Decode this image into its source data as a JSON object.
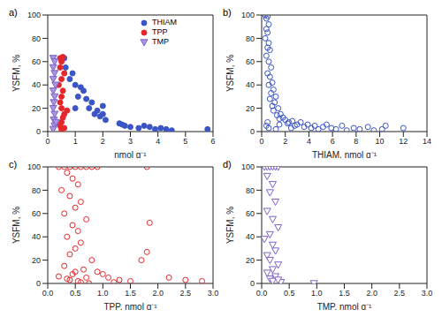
{
  "chart_data": [
    {
      "type": "scatter",
      "title": "a)",
      "x_label": "nmol g⁻¹",
      "y_label": "YSFM, %",
      "xlim": [
        0,
        6
      ],
      "xticks": [
        0,
        1,
        2,
        3,
        4,
        5,
        6
      ],
      "ylim": [
        0,
        100
      ],
      "yticks": [
        0,
        20,
        40,
        60,
        80,
        100
      ],
      "grid": false,
      "legend": "upper right",
      "series": [
        {
          "name": "THIAM",
          "color": "#3b55c6",
          "marker": "circle",
          "x": [
            0.6,
            0.65,
            0.9,
            1.0,
            1.1,
            1.2,
            1.3,
            1.4,
            1.5,
            1.6,
            1.7,
            1.8,
            1.9,
            2.0,
            2.1,
            2.0,
            2.7,
            2.8,
            3.0,
            3.3,
            3.5,
            3.7,
            3.9,
            4.1,
            4.3,
            4.5,
            5.8,
            2.6,
            1.0,
            0.8
          ],
          "values": [
            63,
            55,
            50,
            40,
            30,
            38,
            35,
            28,
            20,
            25,
            15,
            18,
            13,
            22,
            10,
            15,
            6,
            5,
            4,
            3,
            5,
            4,
            2,
            3,
            2,
            1,
            2,
            7,
            20,
            45
          ]
        },
        {
          "name": "TPP",
          "color": "#e5262a",
          "marker": "circle",
          "x": [
            0.45,
            0.5,
            0.55,
            0.45,
            0.5,
            0.55,
            0.5,
            0.45,
            0.5,
            0.6,
            0.55,
            0.5,
            0.45,
            0.6,
            0.4,
            0.6,
            0.7,
            0.5
          ],
          "values": [
            63,
            60,
            64,
            55,
            45,
            35,
            30,
            25,
            20,
            15,
            12,
            8,
            5,
            3,
            40,
            50,
            18,
            2
          ]
        },
        {
          "name": "TMP",
          "color": "#7f62c9",
          "marker": "triangle",
          "x": [
            0.2,
            0.25,
            0.2,
            0.25,
            0.2,
            0.28,
            0.2,
            0.25,
            0.22,
            0.2,
            0.25,
            0.22,
            0.25,
            0.2,
            0.3
          ],
          "values": [
            63,
            60,
            55,
            50,
            45,
            40,
            35,
            30,
            25,
            20,
            15,
            10,
            5,
            2,
            8
          ]
        }
      ]
    },
    {
      "type": "scatter",
      "title": "b)",
      "x_label": "THIAM, nmol g⁻¹",
      "y_label": "YSFM, %",
      "xlim": [
        0,
        14
      ],
      "xticks": [
        0,
        2,
        4,
        6,
        8,
        10,
        12,
        14
      ],
      "ylim": [
        0,
        100
      ],
      "yticks": [
        0,
        20,
        40,
        60,
        80,
        100
      ],
      "grid": false,
      "series": [
        {
          "color": "#3b55c6",
          "marker": "open-circle",
          "x": [
            0.3,
            0.4,
            0.5,
            0.6,
            0.4,
            0.5,
            0.3,
            0.6,
            0.7,
            0.5,
            0.4,
            0.6,
            0.8,
            0.5,
            0.7,
            0.9,
            0.6,
            1.0,
            0.8,
            1.2,
            0.7,
            1.1,
            0.9,
            1.4,
            1.0,
            1.6,
            1.3,
            1.8,
            2.0,
            1.5,
            2.3,
            2.6,
            2.2,
            3.0,
            2.8,
            3.3,
            3.6,
            3.9,
            4.2,
            4.5,
            4.8,
            5.2,
            5.5,
            5.9,
            6.3,
            6.8,
            7.2,
            7.8,
            8.3,
            9.0,
            9.5,
            10.2,
            10.5,
            12.0,
            0.5,
            0.6,
            0.4,
            1.2,
            1.5,
            2.5
          ],
          "values": [
            100,
            97,
            99,
            92,
            88,
            85,
            80,
            76,
            70,
            72,
            65,
            60,
            55,
            50,
            47,
            42,
            40,
            36,
            33,
            30,
            28,
            25,
            22,
            20,
            18,
            15,
            14,
            12,
            10,
            11,
            8,
            9,
            7,
            6,
            5,
            8,
            4,
            6,
            3,
            5,
            2,
            4,
            6,
            3,
            2,
            5,
            1,
            3,
            2,
            4,
            1,
            2,
            5,
            3,
            8,
            3,
            5,
            2,
            6,
            3
          ]
        }
      ]
    },
    {
      "type": "scatter",
      "title": "c)",
      "x_label": "TPP, nmol g⁻¹",
      "y_label": "YSFM, %",
      "xlim": [
        0,
        3
      ],
      "xticks": [
        {
          "value": 0,
          "label": "0.0"
        },
        0.5,
        {
          "value": 1,
          "label": "1.0"
        },
        1.5,
        {
          "value": 2,
          "label": "2.0"
        },
        2.5,
        {
          "value": 3,
          "label": "3.0"
        }
      ],
      "ylim": [
        0,
        100
      ],
      "yticks": [
        0,
        20,
        40,
        60,
        80,
        100
      ],
      "grid": false,
      "series": [
        {
          "color": "#e5262a",
          "marker": "open-circle",
          "x": [
            0.2,
            0.3,
            0.4,
            0.5,
            0.6,
            0.7,
            0.8,
            0.9,
            0.35,
            0.45,
            0.55,
            0.25,
            0.4,
            0.6,
            0.5,
            0.3,
            0.7,
            0.45,
            0.55,
            0.35,
            0.6,
            0.5,
            0.4,
            0.8,
            0.3,
            0.65,
            0.5,
            0.45,
            0.2,
            0.7,
            0.4,
            0.55,
            0.6,
            0.35,
            0.9,
            1.1,
            1.3,
            1.0,
            1.8,
            1.85,
            1.7,
            1.8,
            2.2,
            2.5,
            2.8,
            1.5,
            1.2,
            0.75
          ],
          "values": [
            100,
            100,
            100,
            100,
            100,
            100,
            100,
            100,
            95,
            90,
            85,
            80,
            75,
            70,
            65,
            60,
            55,
            50,
            45,
            40,
            35,
            30,
            25,
            20,
            15,
            12,
            10,
            8,
            6,
            5,
            3,
            2,
            1,
            4,
            10,
            5,
            3,
            8,
            100,
            52,
            20,
            27,
            5,
            3,
            2,
            2,
            1,
            0
          ]
        }
      ]
    },
    {
      "type": "scatter",
      "title": "d)",
      "x_label": "TMP, nmol g⁻¹",
      "y_label": "YSFM, %",
      "xlim": [
        0,
        3
      ],
      "xticks": [
        {
          "value": 0,
          "label": "0.0"
        },
        0.5,
        {
          "value": 1,
          "label": "1.0"
        },
        1.5,
        {
          "value": 2,
          "label": "2.0"
        },
        2.5,
        {
          "value": 3,
          "label": "3.0"
        }
      ],
      "ylim": [
        0,
        100
      ],
      "yticks": [
        0,
        20,
        40,
        60,
        80,
        100
      ],
      "grid": false,
      "series": [
        {
          "color": "#7f62c9",
          "marker": "open-triangle",
          "x": [
            0.05,
            0.1,
            0.15,
            0.2,
            0.25,
            0.3,
            0.1,
            0.2,
            0.15,
            0.25,
            0.1,
            0.2,
            0.3,
            0.15,
            0.05,
            0.2,
            0.25,
            0.1,
            0.15,
            0.3,
            0.2,
            0.1,
            0.25,
            0.15,
            0.2,
            0.35,
            0.3,
            0.95
          ],
          "values": [
            100,
            100,
            100,
            100,
            100,
            100,
            92,
            85,
            78,
            70,
            62,
            55,
            48,
            42,
            38,
            33,
            28,
            24,
            20,
            16,
            12,
            9,
            6,
            4,
            2,
            1,
            3,
            0
          ]
        }
      ]
    }
  ]
}
